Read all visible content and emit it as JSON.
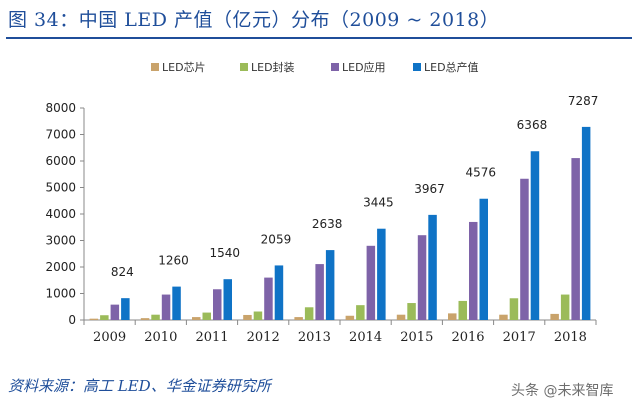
{
  "title": "图 34：中国 LED 产值（亿元）分布（2009 ~ 2018）",
  "source": "资料来源：高工 LED、华金证券研究所",
  "watermark": "头条 @未来智库",
  "chart_data": {
    "type": "bar",
    "categories": [
      "2009",
      "2010",
      "2011",
      "2012",
      "2013",
      "2014",
      "2015",
      "2016",
      "2017",
      "2018"
    ],
    "series": [
      {
        "name": "LED芯片",
        "color": "#c9a36b",
        "values": [
          50,
          70,
          110,
          190,
          110,
          160,
          200,
          250,
          200,
          230
        ]
      },
      {
        "name": "LED封装",
        "color": "#9bbb59",
        "values": [
          180,
          200,
          280,
          320,
          480,
          560,
          640,
          720,
          820,
          960
        ]
      },
      {
        "name": "LED应用",
        "color": "#7e63a8",
        "values": [
          580,
          960,
          1160,
          1600,
          2110,
          2800,
          3200,
          3700,
          5330,
          6110
        ]
      },
      {
        "name": "LED总产值",
        "color": "#0f73c6",
        "values": [
          824,
          1260,
          1540,
          2059,
          2638,
          3445,
          3967,
          4576,
          6368,
          7287
        ]
      }
    ],
    "data_labels": [
      "824",
      "1260",
      "1540",
      "2059",
      "2638",
      "3445",
      "3967",
      "4576",
      "6368",
      "7287"
    ],
    "yticks": [
      "0",
      "1000",
      "2000",
      "3000",
      "4000",
      "5000",
      "6000",
      "7000",
      "8000"
    ],
    "ylim": [
      0,
      8000
    ],
    "grid": false,
    "legend_position": "top"
  }
}
